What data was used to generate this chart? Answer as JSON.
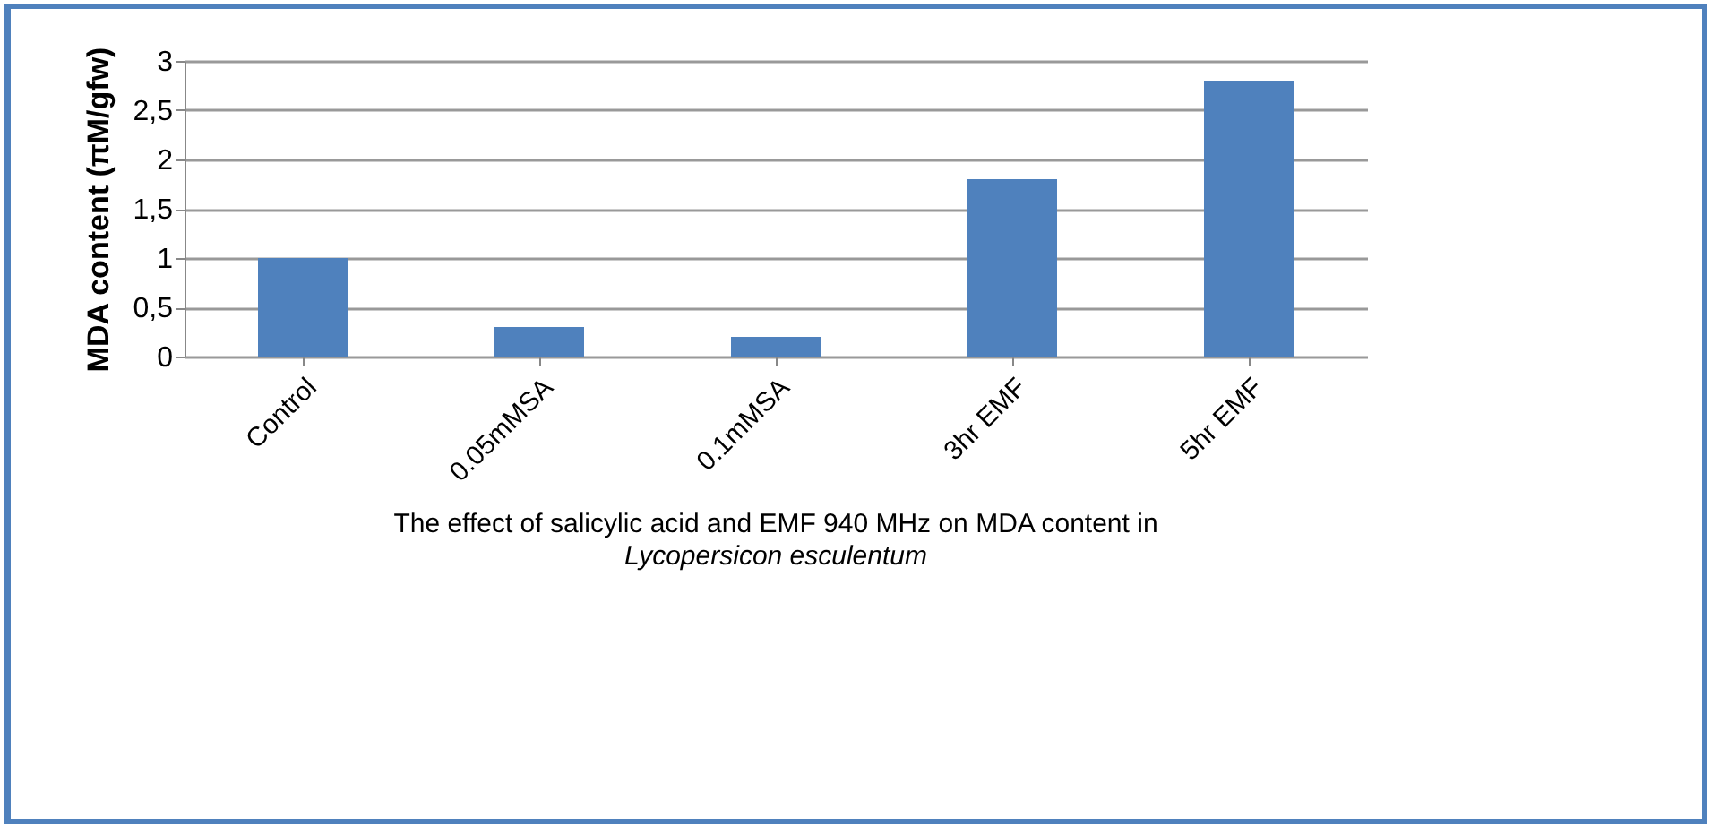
{
  "chart_data": {
    "type": "bar",
    "title": "The effect of salicylic acid and EMF 940 MHz on MDA content in",
    "subtitle": "Lycopersicon esculentum",
    "ylabel": "MDA content (πM/gfw)",
    "categories": [
      "Control",
      "0.05mMSA",
      "0.1mMSA",
      "3hr EMF",
      "5hr EMF"
    ],
    "values": [
      1.0,
      0.3,
      0.2,
      1.8,
      2.8
    ],
    "color": "#4f81bd",
    "ylim": [
      0,
      3
    ],
    "yticks": [
      0,
      {
        "value": 0.5,
        "label": "0,5"
      },
      1,
      {
        "value": 1.5,
        "label": "1,5"
      },
      2,
      {
        "value": 2.5,
        "label": "2,5"
      },
      3
    ],
    "grid": "y"
  }
}
